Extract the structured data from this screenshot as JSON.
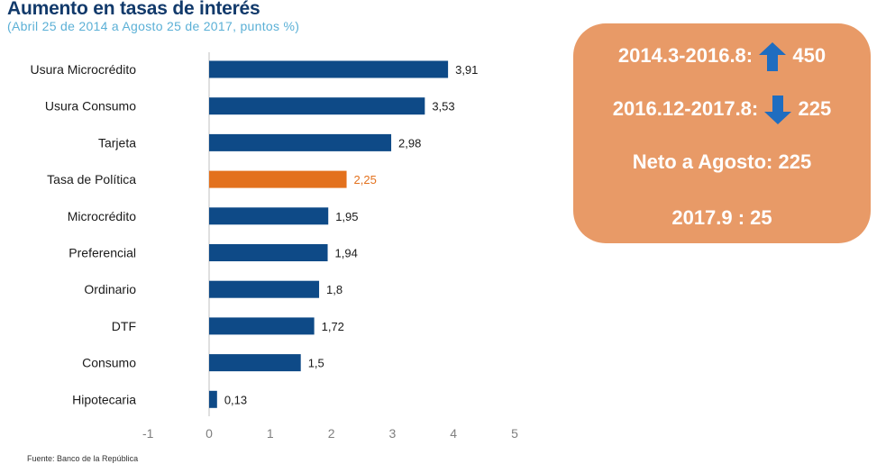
{
  "title": "Aumento en tasas de interés",
  "subtitle": "(Abril 25 de 2014 a Agosto 25 de 2017, puntos %)",
  "source": "Fuente: Banco de la República",
  "summary": {
    "line1_label": "2014.3-2016.8:",
    "line1_icon": "arrow-up-icon",
    "line1_value": "450",
    "line2_label": "2016.12-2017.8:",
    "line2_icon": "arrow-down-icon",
    "line2_value": "225",
    "line3_label": "Neto a Agosto:",
    "line3_value": "225",
    "line4": "2017.9 : 25",
    "box_color": "#e89a67",
    "arrow_color": "#1f6dc0"
  },
  "chart_data": {
    "type": "bar",
    "orientation": "horizontal",
    "categories": [
      "Usura Microcrédito",
      "Usura Consumo",
      "Tarjeta",
      "Tasa de Política",
      "Microcrédito",
      "Preferencial",
      "Ordinario",
      "DTF",
      "Consumo",
      "Hipotecaria"
    ],
    "values": [
      3.91,
      3.53,
      2.98,
      2.25,
      1.95,
      1.94,
      1.8,
      1.72,
      1.5,
      0.13
    ],
    "value_labels": [
      "3,91",
      "3,53",
      "2,98",
      "2,25",
      "1,95",
      "1,94",
      "1,8",
      "1,72",
      "1,5",
      "0,13"
    ],
    "highlight_index": 3,
    "colors": {
      "default": "#0e4a87",
      "highlight": "#e3711d"
    },
    "xlim": [
      -1,
      5
    ],
    "xticks": [
      -1,
      0,
      1,
      2,
      3,
      4,
      5
    ],
    "xtick_labels": [
      "-1",
      "0",
      "1",
      "2",
      "3",
      "4",
      "5"
    ],
    "grid": false
  }
}
